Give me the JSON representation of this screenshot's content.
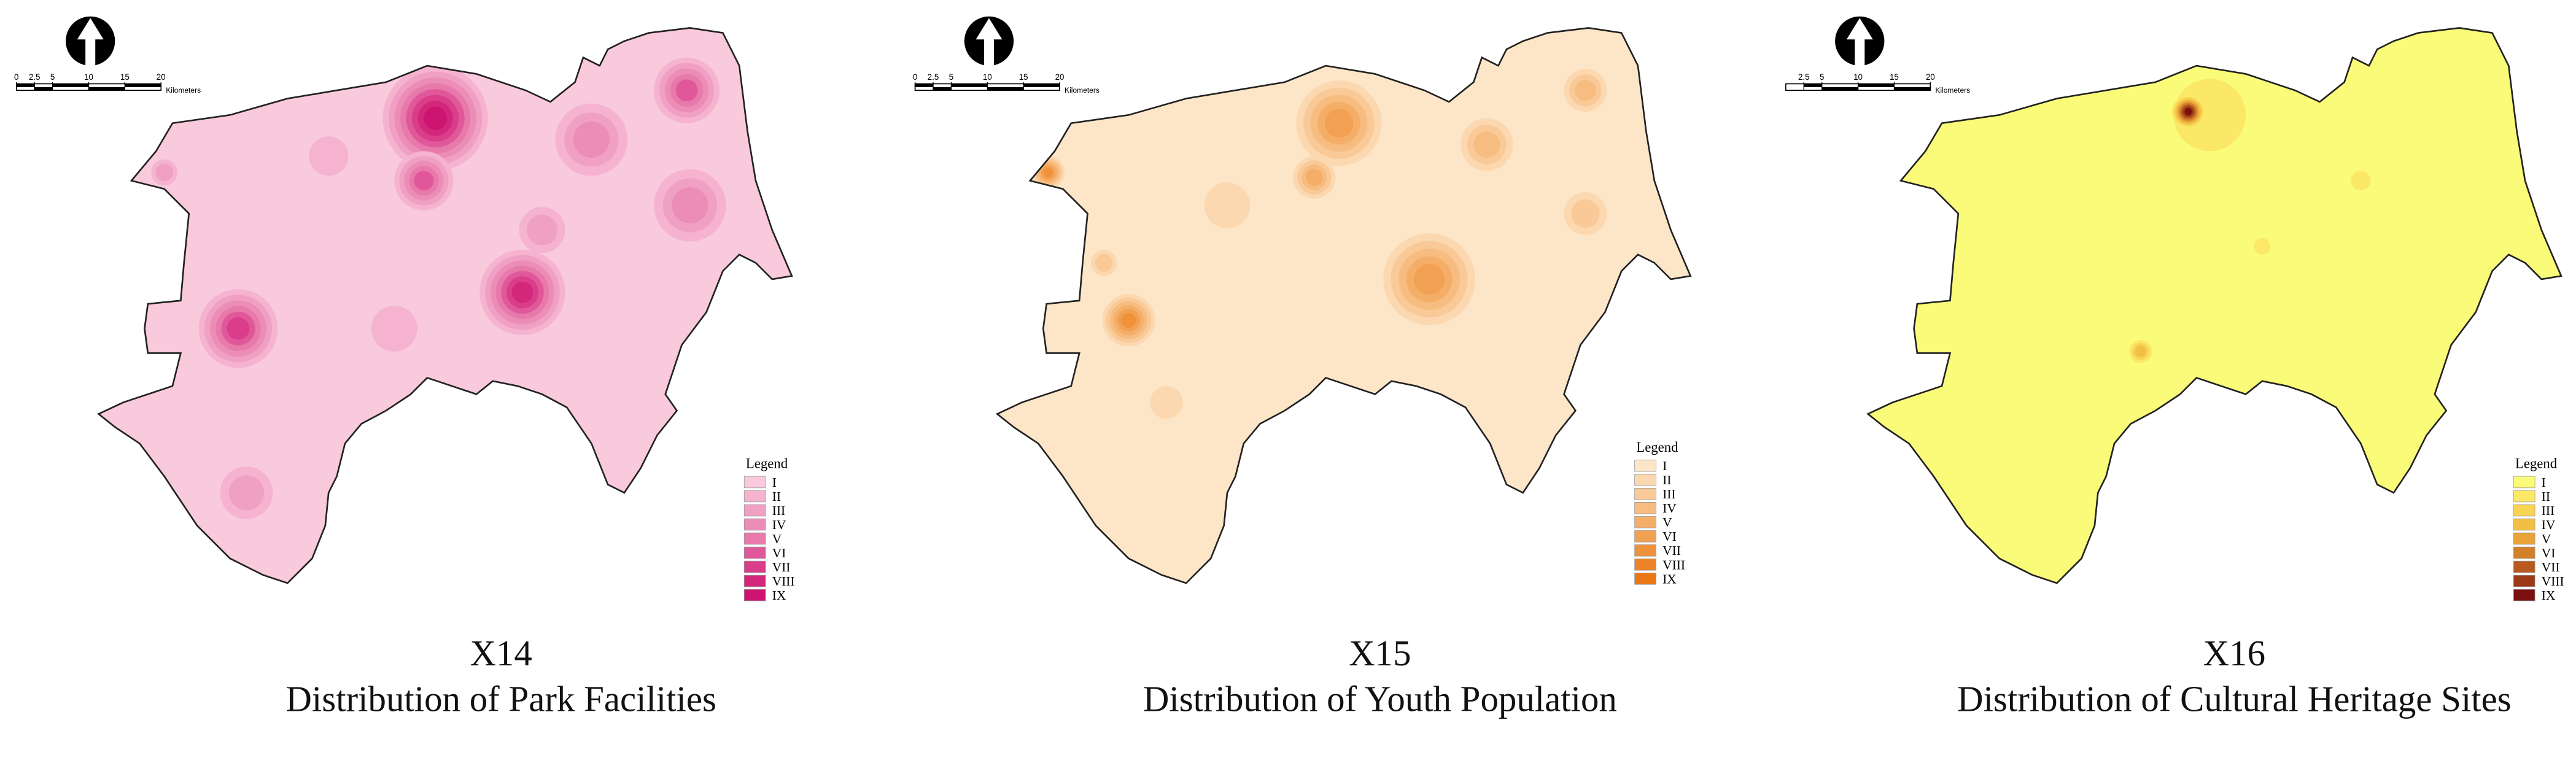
{
  "panels": [
    {
      "code": "X14",
      "caption": "Distribution of Park Facilities",
      "legend_title": "Legend",
      "scale_ticks": [
        0,
        2.5,
        5,
        10,
        15,
        20
      ],
      "scale_unit": "Kilometers",
      "classes": [
        {
          "label": "I",
          "color": "#f9c9dc"
        },
        {
          "label": "II",
          "color": "#f5b3cf"
        },
        {
          "label": "III",
          "color": "#f0a0c3"
        },
        {
          "label": "IV",
          "color": "#ec8db7"
        },
        {
          "label": "V",
          "color": "#e77aab"
        },
        {
          "label": "VI",
          "color": "#e0589a"
        },
        {
          "label": "VII",
          "color": "#da3d89"
        },
        {
          "label": "VIII",
          "color": "#d3277c"
        },
        {
          "label": "IX",
          "color": "#cc1470"
        }
      ]
    },
    {
      "code": "X15",
      "caption": "Distribution of Youth Population",
      "legend_title": "Legend",
      "scale_ticks": [
        0,
        2.5,
        5,
        10,
        15,
        20
      ],
      "scale_unit": "Kilometers",
      "classes": [
        {
          "label": "I",
          "color": "#fde6c8"
        },
        {
          "label": "II",
          "color": "#fbd8b0"
        },
        {
          "label": "III",
          "color": "#f9ca98"
        },
        {
          "label": "IV",
          "color": "#f7bc80"
        },
        {
          "label": "V",
          "color": "#f5ae68"
        },
        {
          "label": "VI",
          "color": "#f2a052"
        },
        {
          "label": "VII",
          "color": "#f0923c"
        },
        {
          "label": "VIII",
          "color": "#ee8428"
        },
        {
          "label": "IX",
          "color": "#eb7614"
        }
      ]
    },
    {
      "code": "X16",
      "caption": "Distribution of Cultural Heritage Sites",
      "legend_title": "Legend",
      "scale_ticks": [
        2.5,
        5,
        10,
        15,
        20
      ],
      "scale_unit": "Kilometers",
      "classes": [
        {
          "label": "I",
          "color": "#fbfb7a"
        },
        {
          "label": "II",
          "color": "#fbe866"
        },
        {
          "label": "III",
          "color": "#f8d455"
        },
        {
          "label": "IV",
          "color": "#f2bf45"
        },
        {
          "label": "V",
          "color": "#e8a338"
        },
        {
          "label": "VI",
          "color": "#d4802b"
        },
        {
          "label": "VII",
          "color": "#b85a20"
        },
        {
          "label": "VIII",
          "color": "#9a3a16"
        },
        {
          "label": "IX",
          "color": "#7a1010"
        }
      ]
    }
  ]
}
